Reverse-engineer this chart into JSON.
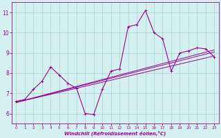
{
  "background_color": "#d4f0f0",
  "grid_color": "#a8d8d8",
  "line_color": "#990099",
  "xlabel": "Windchill (Refroidissement éolien,°C)",
  "ylim": [
    5.5,
    11.5
  ],
  "xlim": [
    -0.5,
    23.5
  ],
  "yticks": [
    6,
    7,
    8,
    9,
    10,
    11
  ],
  "xticks": [
    0,
    1,
    2,
    3,
    4,
    5,
    6,
    7,
    8,
    9,
    10,
    11,
    12,
    13,
    14,
    15,
    16,
    17,
    18,
    19,
    20,
    21,
    22,
    23
  ],
  "series1": {
    "x": [
      0,
      1,
      2,
      3,
      4,
      5,
      6,
      7,
      8,
      9,
      10,
      11,
      12,
      13,
      14,
      15,
      16,
      17,
      18,
      19,
      20,
      21,
      22,
      23
    ],
    "y": [
      6.6,
      6.7,
      7.2,
      7.6,
      8.3,
      7.9,
      7.5,
      7.25,
      6.0,
      5.95,
      7.2,
      8.1,
      8.2,
      10.3,
      10.4,
      11.1,
      10.0,
      9.7,
      8.1,
      9.0,
      9.1,
      9.25,
      9.2,
      8.8
    ]
  },
  "series2": {
    "x": [
      0,
      23
    ],
    "y": [
      6.55,
      8.85
    ]
  },
  "series3": {
    "x": [
      0,
      23
    ],
    "y": [
      6.55,
      9.05
    ]
  },
  "series4": {
    "x": [
      0,
      23
    ],
    "y": [
      6.55,
      9.15
    ]
  }
}
